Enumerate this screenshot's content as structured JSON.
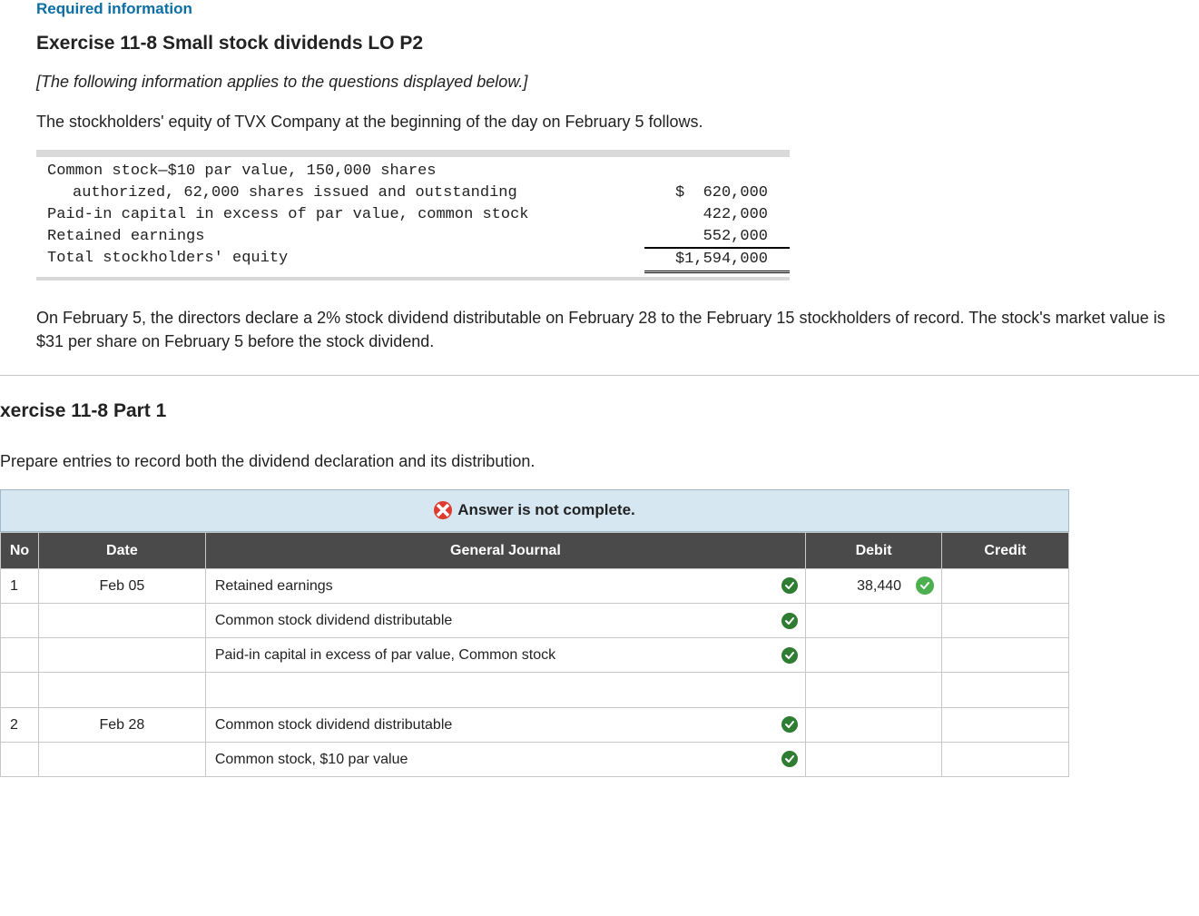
{
  "header": {
    "required": "Required information",
    "title": "Exercise 11-8 Small stock dividends LO P2",
    "note": "[The following information applies to the questions displayed below.]",
    "intro": "The stockholders' equity of TVX Company at the beginning of the day on February 5 follows."
  },
  "equity": {
    "line1a": "Common stock—$10 par value, 150,000 shares",
    "line1b": "authorized, 62,000 shares issued and outstanding",
    "amt1": "$  620,000",
    "line2": "Paid-in capital in excess of par value, common stock",
    "amt2": "422,000",
    "line3": "Retained earnings",
    "amt3": "552,000",
    "line4": "Total stockholders' equity",
    "amt4": "$1,594,000"
  },
  "narrative": "On February 5, the directors declare a 2% stock dividend distributable on February 28 to the February 15 stockholders of record. The stock's market value is $31 per share on February 5 before the stock dividend.",
  "part": {
    "title": "xercise 11-8 Part 1",
    "instruct": "Prepare entries to record both the dividend declaration and its distribution."
  },
  "banner": {
    "text": "Answer is not complete."
  },
  "table": {
    "headers": {
      "no": "No",
      "date": "Date",
      "gj": "General Journal",
      "debit": "Debit",
      "credit": "Credit"
    },
    "rows": [
      {
        "no": "1",
        "date": "Feb 05",
        "gj": "Retained earnings",
        "check": "darkgreen",
        "debit": "38,440",
        "debitcheck": "green",
        "credit": ""
      },
      {
        "no": "",
        "date": "",
        "gj": "Common stock dividend distributable",
        "check": "darkgreen",
        "debit": "",
        "credit": ""
      },
      {
        "no": "",
        "date": "",
        "gj": "Paid-in capital in excess of par value, Common stock",
        "check": "darkgreen",
        "debit": "",
        "credit": ""
      },
      {
        "no": "",
        "date": "",
        "gj": "",
        "check": "",
        "debit": "",
        "credit": ""
      },
      {
        "no": "2",
        "date": "Feb 28",
        "gj": "Common stock dividend distributable",
        "check": "darkgreen",
        "debit": "",
        "credit": ""
      },
      {
        "no": "",
        "date": "",
        "gj": "Common stock, $10 par value",
        "check": "darkgreen",
        "debit": "",
        "credit": ""
      }
    ]
  },
  "colors": {
    "link": "#0b6fa4",
    "bannerBg": "#d6e7f2",
    "headerBg": "#4a4a4a",
    "xIcon": "#e03b2f",
    "checkGreen": "#4caf50",
    "checkDark": "#2e7d32"
  }
}
